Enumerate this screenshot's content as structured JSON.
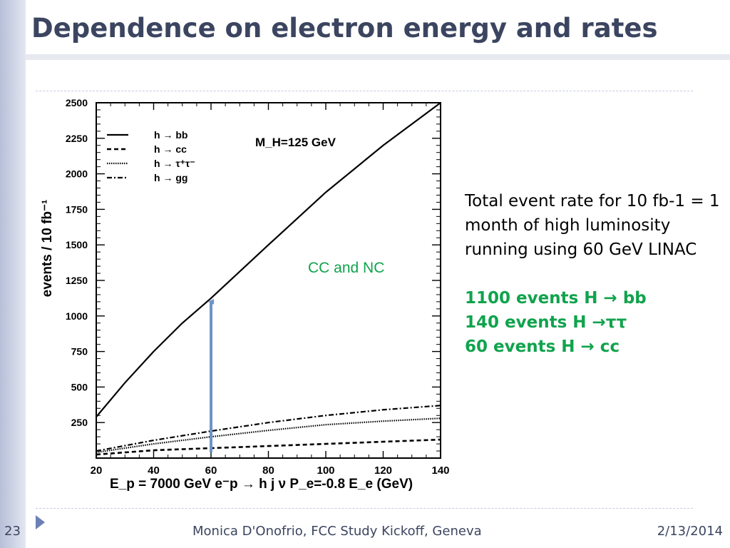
{
  "slide": {
    "title": "Dependence on electron energy and rates",
    "number": "23",
    "footer": "Monica D'Onofrio, FCC Study Kickoff, Geneva",
    "date": "2/13/2014"
  },
  "description": {
    "text": "Total event rate for 10 fb-1 = 1 month of high luminosity running using 60 GeV LINAC",
    "highlights": [
      "1100 events H → bb",
      "140 events H →ττ",
      "60 events H → cc"
    ]
  },
  "chart_data": {
    "type": "line",
    "xlabel": "E_p = 7000 GeV e⁻p → h j ν P_e=-0.8        E_e (GeV)",
    "ylabel": "events / 10 fb⁻¹",
    "xlim": [
      20,
      140
    ],
    "ylim": [
      0,
      2500
    ],
    "xticks": [
      20,
      40,
      60,
      80,
      100,
      120,
      140
    ],
    "yticks": [
      250,
      500,
      750,
      1000,
      1250,
      1500,
      1750,
      2000,
      2250,
      2500
    ],
    "annotations": [
      "M_H=125 GeV",
      "CC and NC"
    ],
    "arrow": {
      "x": 60,
      "y_from": 40,
      "y_to": 1130
    },
    "accent_colors": {
      "annotation": "#10a34d",
      "arrow": "#6c95c8"
    },
    "series": [
      {
        "name": "h → bb",
        "style": "solid",
        "x": [
          20,
          30,
          40,
          50,
          60,
          80,
          100,
          120,
          140
        ],
        "y": [
          290,
          530,
          750,
          950,
          1125,
          1500,
          1870,
          2200,
          2500
        ]
      },
      {
        "name": "h → cc",
        "style": "dashed",
        "x": [
          20,
          40,
          60,
          80,
          100,
          120,
          140
        ],
        "y": [
          25,
          55,
          70,
          85,
          100,
          115,
          130
        ]
      },
      {
        "name": "h → τ⁺τ⁻",
        "style": "dotted",
        "x": [
          20,
          40,
          60,
          80,
          100,
          120,
          140
        ],
        "y": [
          40,
          100,
          150,
          195,
          235,
          260,
          280
        ]
      },
      {
        "name": "h → gg",
        "style": "dashdot",
        "x": [
          20,
          40,
          60,
          80,
          100,
          120,
          140
        ],
        "y": [
          50,
          125,
          190,
          250,
          300,
          340,
          370
        ]
      }
    ]
  }
}
